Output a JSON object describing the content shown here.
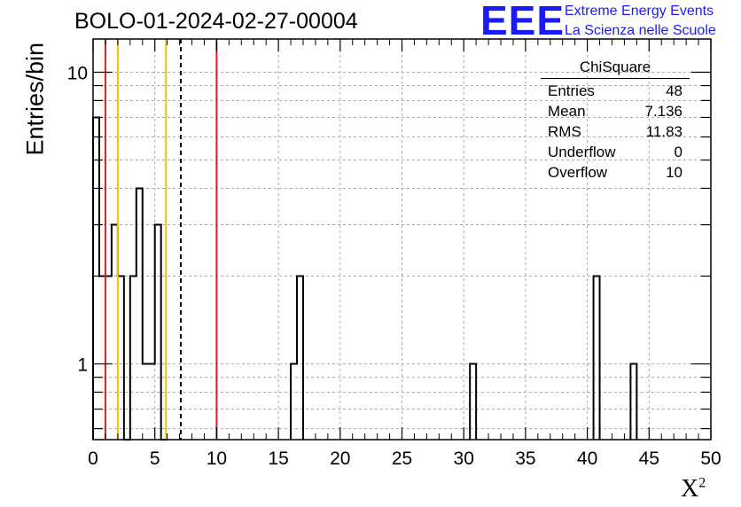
{
  "header": {
    "title": "BOLO-01-2024-02-27-00004",
    "logo_mark": "EEE",
    "logo_line1": "Extreme Energy Events",
    "logo_line2": "La Scienza nelle Scuole"
  },
  "stats_box": {
    "name": "ChiSquare",
    "rows": [
      {
        "label": "Entries",
        "value": "48"
      },
      {
        "label": "Mean",
        "value": "7.136"
      },
      {
        "label": "RMS",
        "value": "11.83"
      },
      {
        "label": "Underflow",
        "value": "0"
      },
      {
        "label": "Overflow",
        "value": "10"
      }
    ]
  },
  "chart_data": {
    "type": "bar",
    "title": "BOLO-01-2024-02-27-00004",
    "xlabel": "X",
    "xlabel_superscript": "2",
    "ylabel": "Entries/bin",
    "xlim": [
      0,
      50
    ],
    "ylim": [
      0.55,
      13
    ],
    "yscale": "log",
    "grid": true,
    "bin_width": 0.5,
    "x_ticks": [
      0,
      5,
      10,
      15,
      20,
      25,
      30,
      35,
      40,
      45,
      50
    ],
    "y_ticks": [
      1,
      10
    ],
    "bins": [
      {
        "x": 0.0,
        "y": 7
      },
      {
        "x": 0.5,
        "y": 2
      },
      {
        "x": 1.0,
        "y": 2
      },
      {
        "x": 1.5,
        "y": 3
      },
      {
        "x": 2.0,
        "y": 2
      },
      {
        "x": 2.5,
        "y": 0
      },
      {
        "x": 3.0,
        "y": 2
      },
      {
        "x": 3.5,
        "y": 4
      },
      {
        "x": 4.0,
        "y": 1
      },
      {
        "x": 4.5,
        "y": 1
      },
      {
        "x": 5.0,
        "y": 3
      },
      {
        "x": 5.5,
        "y": 0
      },
      {
        "x": 16.0,
        "y": 1
      },
      {
        "x": 16.5,
        "y": 2
      },
      {
        "x": 30.5,
        "y": 1
      },
      {
        "x": 40.5,
        "y": 2
      },
      {
        "x": 43.5,
        "y": 1
      }
    ],
    "vertical_lines": [
      {
        "x": 1.0,
        "color": "#e41a1c",
        "style": "solid"
      },
      {
        "x": 2.0,
        "color": "#f2c200",
        "style": "solid"
      },
      {
        "x": 5.9,
        "color": "#f2c200",
        "style": "solid"
      },
      {
        "x": 7.1,
        "color": "#000000",
        "style": "dashed"
      },
      {
        "x": 10.0,
        "color": "#e41a1c",
        "style": "solid"
      }
    ]
  }
}
